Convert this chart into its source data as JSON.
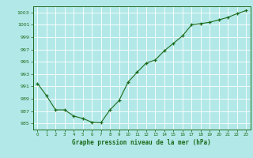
{
  "x": [
    0,
    1,
    2,
    3,
    4,
    5,
    6,
    7,
    8,
    9,
    10,
    11,
    12,
    13,
    14,
    15,
    16,
    17,
    18,
    19,
    20,
    21,
    22,
    23
  ],
  "y": [
    991.5,
    989.5,
    987.2,
    987.2,
    986.2,
    985.8,
    985.2,
    985.1,
    987.2,
    988.7,
    991.7,
    993.3,
    994.8,
    995.3,
    996.8,
    998.0,
    999.2,
    1001.0,
    1001.2,
    1001.4,
    1001.8,
    1002.2,
    1002.8,
    1003.3
  ],
  "line_color": "#1a6b1a",
  "marker": "+",
  "bg_color": "#b3e8e8",
  "grid_color": "#ffffff",
  "ylabel_ticks": [
    985,
    987,
    989,
    991,
    993,
    995,
    997,
    999,
    1001,
    1003
  ],
  "xlabel": "Graphe pression niveau de la mer (hPa)",
  "ylim": [
    984.0,
    1004.0
  ],
  "xlim": [
    -0.5,
    23.5
  ],
  "title": ""
}
